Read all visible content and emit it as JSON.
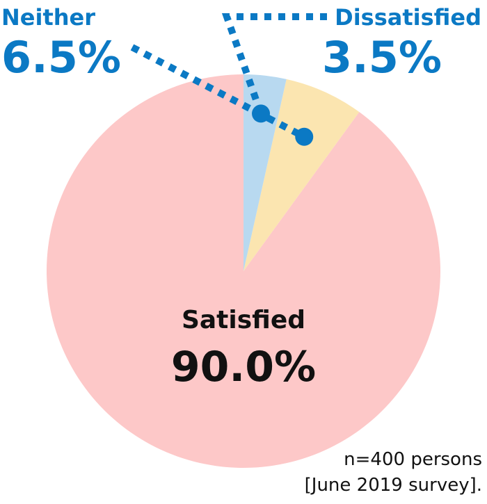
{
  "chart_data": {
    "type": "pie",
    "slices": [
      {
        "label": "Satisfied",
        "value": 90.0,
        "value_label": "90.0%",
        "color": "#fdc8c8"
      },
      {
        "label": "Neither",
        "value": 6.5,
        "value_label": "6.5%",
        "color": "#fbe5b0"
      },
      {
        "label": "Dissatisfied",
        "value": 3.5,
        "value_label": "3.5%",
        "color": "#b8d9f0"
      }
    ],
    "start_angle": "12 o'clock",
    "direction": "counterclockwise",
    "note": {
      "line1": "n=400 persons",
      "line2": "[June 2019 survey]."
    },
    "callout_color": "#0b79c4",
    "center_label_color": "#111111"
  }
}
